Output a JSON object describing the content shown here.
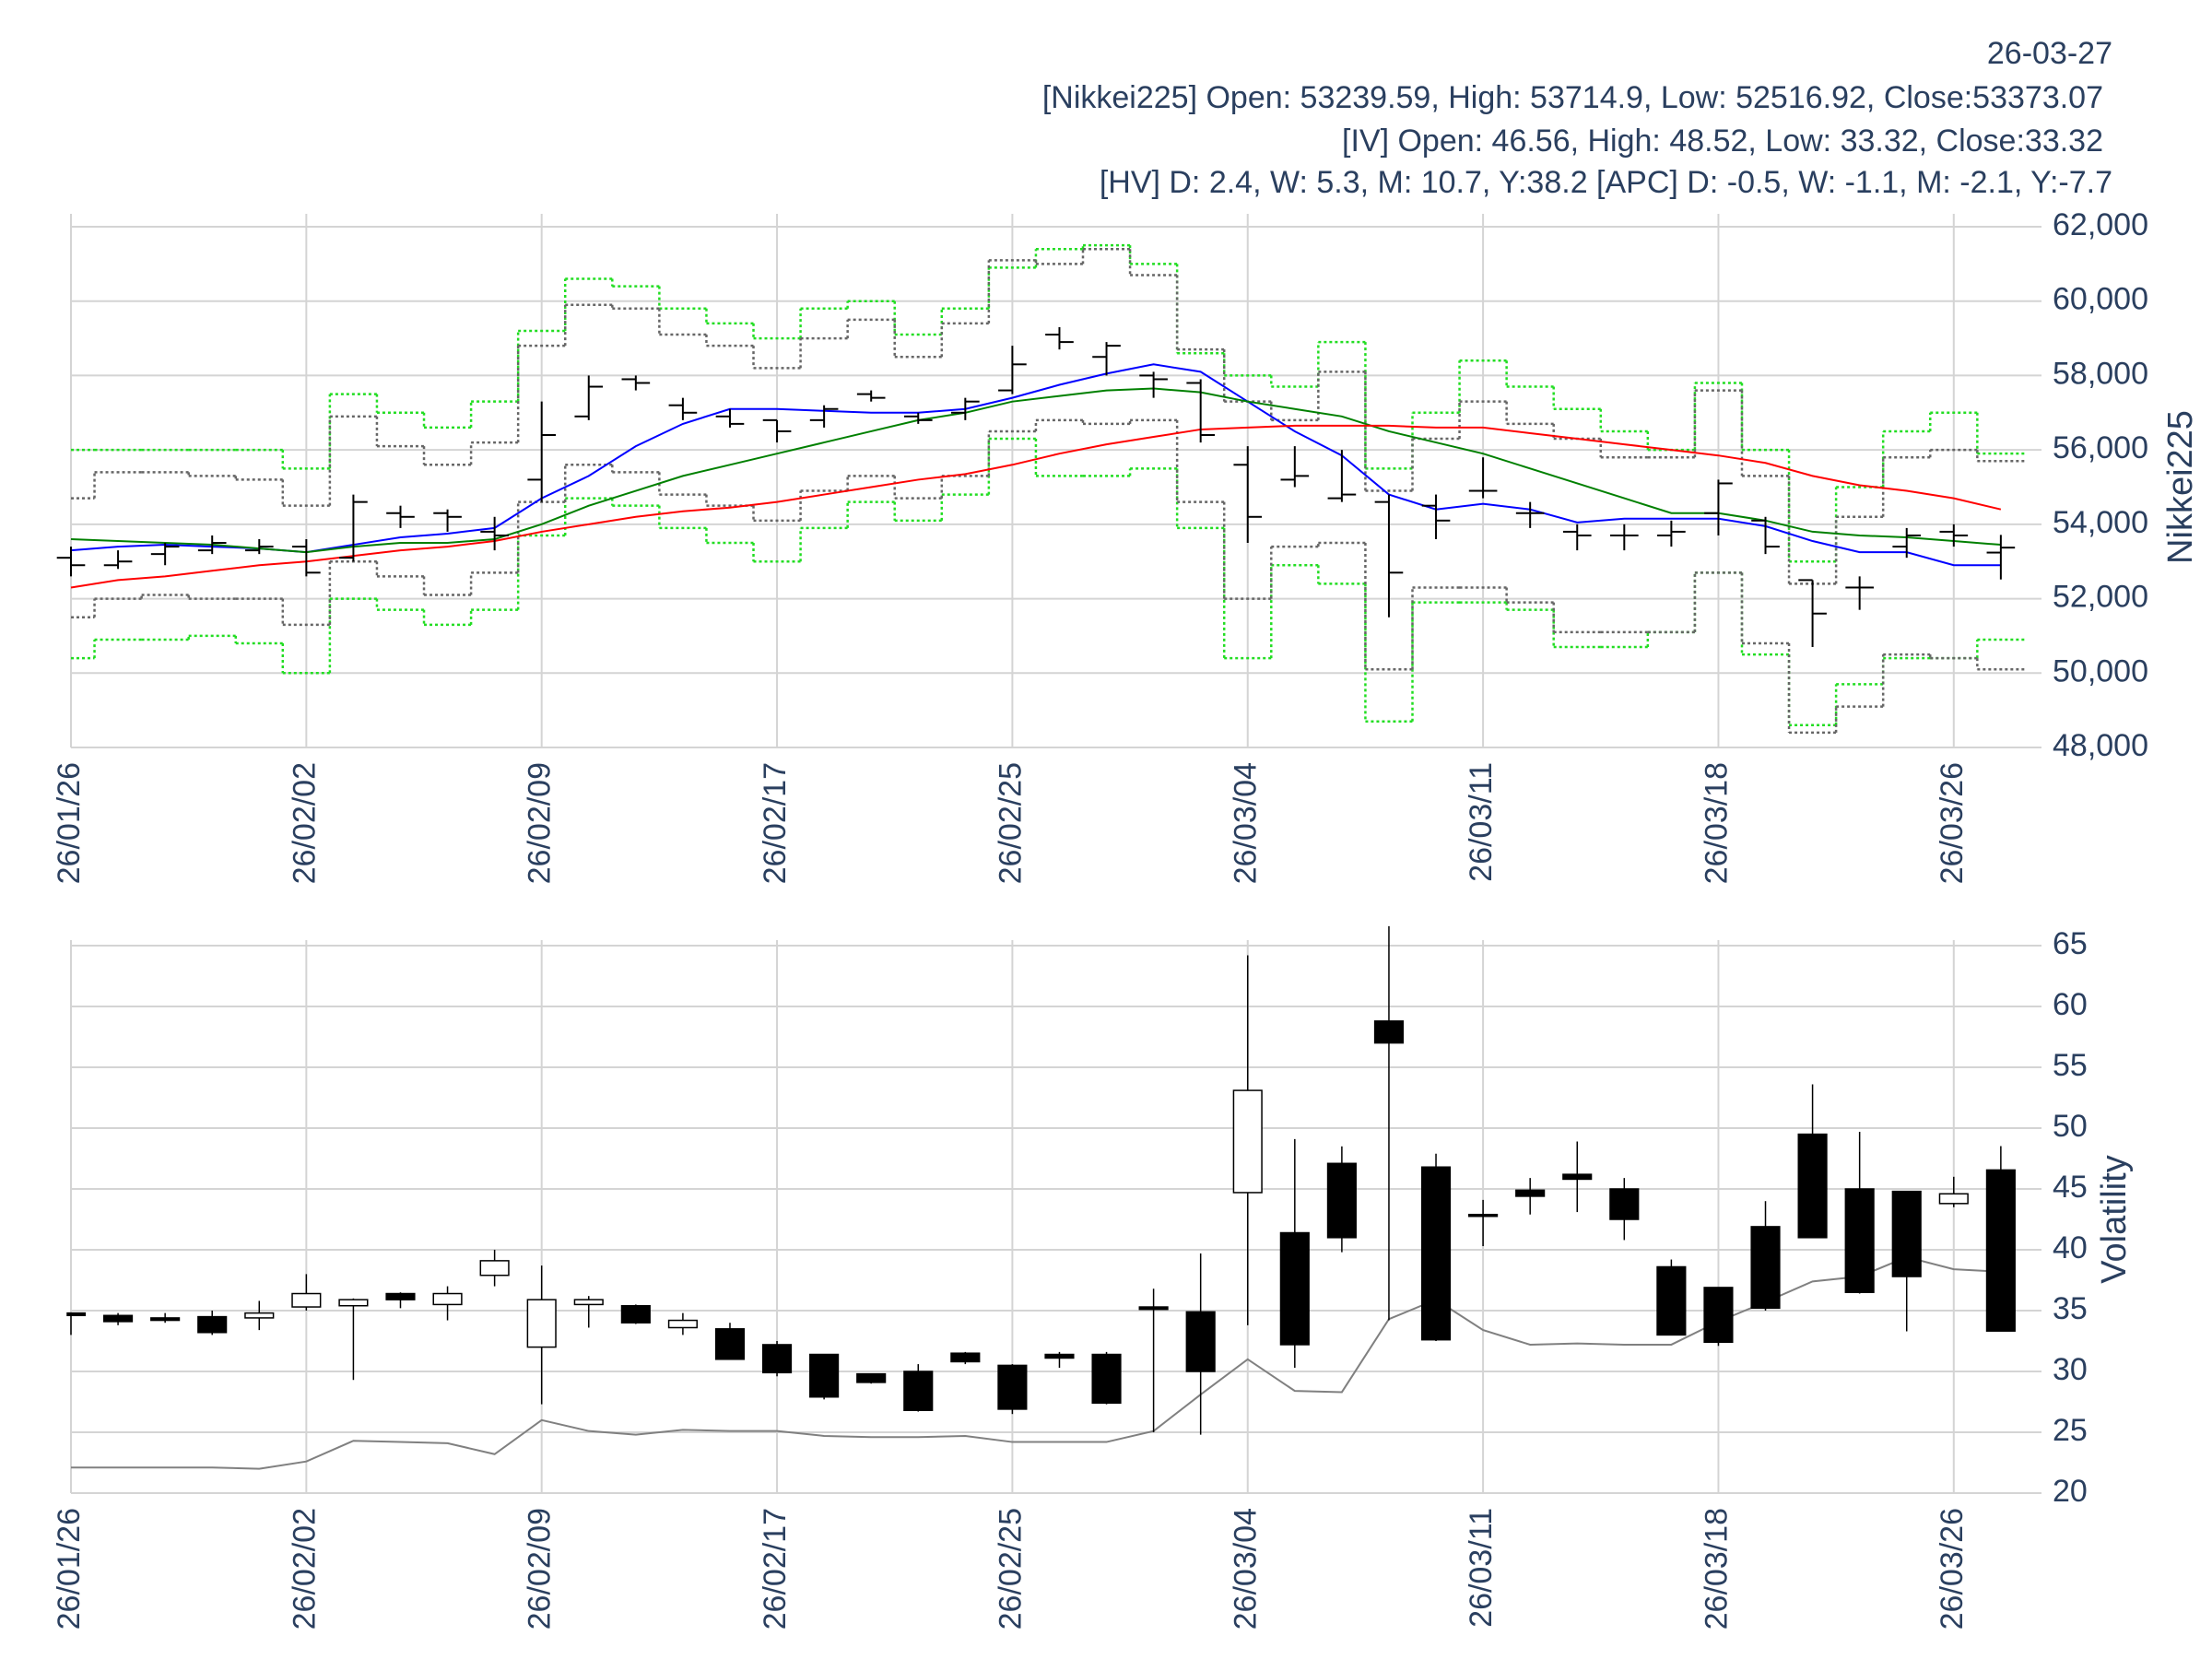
{
  "chart_data": [
    {
      "type": "ohlc",
      "annotations": [
        "26-03-27",
        "[Nikkei225] Open: 53239.59, High: 53714.9, Low: 52516.92, Close:53373.07",
        "[IV] Open: 46.56, High: 48.52, Low: 33.32, Close:33.32",
        "[HV] D: 2.4, W: 5.3, M: 10.7, Y:38.2 [APC] D: -0.5, W: -1.1, M: -2.1, Y:-7.7"
      ],
      "ylabel": "Nikkei225",
      "categories": [
        "26/01/26",
        null,
        null,
        null,
        null,
        "26/02/02",
        null,
        null,
        null,
        null,
        "26/02/09",
        null,
        null,
        null,
        null,
        "26/02/17",
        null,
        null,
        null,
        null,
        "26/02/25",
        null,
        null,
        null,
        null,
        "26/03/04",
        null,
        null,
        null,
        null,
        "26/03/11",
        null,
        null,
        null,
        null,
        "26/03/18",
        null,
        null,
        null,
        null,
        "26/03/26",
        null
      ],
      "open": [
        53100,
        52900,
        53200,
        53300,
        53300,
        53400,
        53100,
        54300,
        54300,
        53800,
        55200,
        56900,
        57900,
        57200,
        56900,
        56800,
        56800,
        57500,
        56900,
        57000,
        57600,
        59100,
        58500,
        58000,
        57800,
        55600,
        55200,
        54700,
        54600,
        54500,
        54900,
        54300,
        53800,
        53700,
        53700,
        54300,
        54100,
        52500,
        52300,
        53400,
        53800,
        53239.59
      ],
      "high": [
        53400,
        53300,
        53500,
        53700,
        53600,
        53600,
        54800,
        54500,
        54400,
        54200,
        57300,
        58000,
        58000,
        57400,
        57100,
        56800,
        57200,
        57600,
        57000,
        57400,
        58800,
        59300,
        58900,
        58100,
        57900,
        56100,
        56100,
        56000,
        54800,
        54800,
        55800,
        54600,
        54000,
        54000,
        54100,
        55200,
        54200,
        52500,
        52600,
        53900,
        54000,
        53714.9
      ],
      "low": [
        52600,
        52800,
        52900,
        53200,
        53200,
        52600,
        53000,
        53900,
        53800,
        53300,
        54600,
        56800,
        57600,
        56800,
        56600,
        56200,
        56600,
        57300,
        56700,
        56800,
        57500,
        58700,
        58000,
        57400,
        56200,
        53500,
        55000,
        54600,
        51500,
        53600,
        54700,
        53900,
        53300,
        53300,
        53400,
        53700,
        53200,
        50700,
        51700,
        53100,
        53400,
        52516.92
      ],
      "close": [
        52900,
        53000,
        53400,
        53500,
        53400,
        52700,
        54600,
        54200,
        54200,
        53700,
        56400,
        57700,
        57800,
        57000,
        56700,
        56500,
        57100,
        57400,
        56800,
        57300,
        58300,
        58900,
        58800,
        57900,
        56400,
        54200,
        55300,
        54800,
        52700,
        54100,
        54900,
        54300,
        53700,
        53700,
        53800,
        55100,
        53400,
        51600,
        52300,
        53700,
        53700,
        53373.07
      ],
      "color": "#000000",
      "ylim": [
        48000,
        62000
      ],
      "yticks": [
        {
          "value": 48000,
          "label": "48,000"
        },
        {
          "value": 50000,
          "label": "50,000"
        },
        {
          "value": 52000,
          "label": "52,000"
        },
        {
          "value": 54000,
          "label": "54,000"
        },
        {
          "value": 56000,
          "label": "56,000"
        },
        {
          "value": 58000,
          "label": "58,000"
        },
        {
          "value": 60000,
          "label": "60,000"
        },
        {
          "value": 62000,
          "label": "62,000"
        }
      ],
      "grid": true,
      "overlays": [
        {
          "color": "#0000ff",
          "values": [
            53300,
            53400,
            53450,
            53400,
            53350,
            53250,
            53450,
            53650,
            53750,
            53900,
            54700,
            55300,
            56100,
            56700,
            57100,
            57100,
            57050,
            57000,
            57000,
            57100,
            57400,
            57750,
            58050,
            58300,
            58100,
            57300,
            56500,
            55850,
            54800,
            54400,
            54550,
            54400,
            54050,
            54150,
            54150,
            54150,
            53950,
            53550,
            53250,
            53250,
            52900,
            52900
          ]
        },
        {
          "color": "#008000",
          "values": [
            53600,
            53550,
            53500,
            53450,
            53350,
            53250,
            53400,
            53500,
            53500,
            53600,
            54000,
            54500,
            54900,
            55300,
            55600,
            55900,
            56200,
            56500,
            56800,
            57000,
            57300,
            57450,
            57600,
            57650,
            57550,
            57300,
            57100,
            56900,
            56500,
            56200,
            55900,
            55500,
            55100,
            54700,
            54300,
            54300,
            54100,
            53800,
            53700,
            53650,
            53550,
            53450
          ]
        },
        {
          "color": "#ff0000",
          "values": [
            52300,
            52500,
            52600,
            52750,
            52900,
            53000,
            53150,
            53300,
            53400,
            53550,
            53800,
            54000,
            54200,
            54350,
            54450,
            54600,
            54800,
            55000,
            55200,
            55350,
            55600,
            55900,
            56150,
            56350,
            56550,
            56600,
            56650,
            56650,
            56650,
            56600,
            56600,
            56450,
            56300,
            56150,
            56000,
            55850,
            55650,
            55300,
            55050,
            54900,
            54700,
            54400
          ]
        }
      ],
      "bands": [
        {
          "color": "#22dd22",
          "values": [
            56000,
            56000,
            56000,
            56000,
            56000,
            55500,
            57500,
            57000,
            56600,
            57300,
            59200,
            60600,
            60400,
            59800,
            59400,
            59000,
            59800,
            60000,
            59100,
            59800,
            60900,
            61400,
            61500,
            61000,
            58600,
            58000,
            57700,
            58900,
            55500,
            57000,
            58400,
            57700,
            57100,
            56500,
            56000,
            57800,
            56000,
            53000,
            55000,
            56500,
            57000,
            55900
          ]
        },
        {
          "color": "#22dd22",
          "values": [
            50400,
            50900,
            50900,
            51000,
            50800,
            50000,
            52000,
            51700,
            51300,
            51700,
            53700,
            54700,
            54500,
            53900,
            53500,
            53000,
            53900,
            54600,
            54100,
            54800,
            56300,
            55300,
            55300,
            55500,
            53900,
            50400,
            52900,
            52400,
            48700,
            51900,
            51900,
            51700,
            50700,
            50700,
            51100,
            52700,
            50500,
            48600,
            49700,
            50400,
            50400,
            50900
          ]
        },
        {
          "color": "#666666",
          "values": [
            54700,
            55400,
            55400,
            55300,
            55200,
            54500,
            56900,
            56100,
            55600,
            56200,
            58800,
            59900,
            59800,
            59100,
            58800,
            58200,
            59000,
            59500,
            58500,
            59400,
            61100,
            61000,
            61400,
            60700,
            58700,
            57300,
            56800,
            58100,
            54900,
            56300,
            57300,
            56700,
            56300,
            55800,
            55800,
            57600,
            55300,
            52400,
            54200,
            55800,
            56000,
            55700
          ]
        },
        {
          "color": "#666666",
          "values": [
            51500,
            52000,
            52100,
            52000,
            52000,
            51300,
            53000,
            52600,
            52100,
            52700,
            54600,
            55600,
            55400,
            54800,
            54500,
            54100,
            54900,
            55300,
            54700,
            55300,
            56500,
            56800,
            56700,
            56800,
            54600,
            52000,
            53400,
            53500,
            50100,
            52300,
            52300,
            51900,
            51100,
            51100,
            51100,
            52700,
            50800,
            48400,
            49100,
            50500,
            50400,
            50100
          ]
        }
      ]
    },
    {
      "type": "candlestick",
      "ylabel": "Volatility",
      "categories": [
        "26/01/26",
        null,
        null,
        null,
        null,
        "26/02/02",
        null,
        null,
        null,
        null,
        "26/02/09",
        null,
        null,
        null,
        null,
        "26/02/17",
        null,
        null,
        null,
        null,
        "26/02/25",
        null,
        null,
        null,
        null,
        "26/03/04",
        null,
        null,
        null,
        null,
        "26/03/11",
        null,
        null,
        null,
        null,
        "26/03/18",
        null,
        null,
        null,
        null,
        "26/03/26",
        null
      ],
      "open": [
        34.8,
        34.6,
        34.4,
        34.5,
        34.4,
        35.3,
        35.4,
        36.4,
        35.5,
        37.9,
        32.0,
        35.5,
        35.4,
        33.6,
        33.5,
        32.2,
        31.4,
        29.8,
        30.0,
        31.5,
        30.5,
        31.4,
        31.4,
        35.3,
        34.9,
        44.7,
        41.4,
        47.1,
        58.8,
        46.8,
        42.9,
        44.9,
        46.2,
        45.0,
        38.6,
        36.9,
        41.9,
        49.5,
        45.0,
        44.8,
        43.8,
        46.56
      ],
      "high": [
        34.8,
        34.8,
        34.8,
        35.0,
        35.8,
        38.0,
        36.0,
        36.5,
        37.0,
        40.0,
        38.7,
        36.2,
        35.5,
        34.8,
        34.0,
        32.5,
        31.4,
        29.8,
        30.6,
        31.6,
        30.6,
        31.6,
        31.6,
        36.8,
        39.7,
        64.2,
        49.1,
        48.5,
        66.6,
        47.9,
        44.1,
        45.9,
        48.9,
        45.9,
        39.2,
        36.9,
        44.0,
        53.6,
        49.7,
        44.8,
        46.0,
        48.52
      ],
      "low": [
        33.0,
        33.8,
        34.0,
        33.0,
        33.4,
        35.0,
        29.3,
        35.2,
        34.2,
        37.0,
        27.3,
        33.6,
        33.9,
        33.0,
        31.0,
        29.6,
        27.7,
        29.0,
        26.7,
        30.6,
        26.5,
        30.3,
        27.3,
        25.0,
        24.8,
        33.8,
        30.3,
        39.8,
        34.2,
        32.5,
        40.3,
        42.9,
        43.1,
        40.8,
        33.0,
        32.1,
        35.0,
        41.0,
        36.4,
        33.3,
        43.5,
        33.32
      ],
      "close": [
        34.6,
        34.1,
        34.2,
        33.2,
        34.8,
        36.4,
        35.9,
        35.9,
        36.4,
        39.1,
        35.9,
        35.9,
        34.0,
        34.2,
        31.0,
        29.9,
        27.9,
        29.1,
        26.8,
        30.8,
        26.9,
        31.1,
        27.4,
        35.1,
        30.0,
        53.1,
        32.2,
        41.0,
        57.0,
        32.6,
        42.8,
        44.4,
        45.8,
        42.5,
        33.0,
        32.4,
        35.2,
        41.0,
        36.5,
        37.8,
        44.6,
        33.32
      ],
      "up_color": "#ffffff",
      "down_color": "#000000",
      "ylim": [
        20,
        65
      ],
      "yticks": [
        20,
        25,
        30,
        35,
        40,
        45,
        50,
        55,
        60,
        65
      ],
      "grid": true,
      "line": {
        "color": "#808080",
        "values": [
          22.1,
          22.1,
          22.1,
          22.1,
          22.0,
          22.6,
          24.3,
          24.2,
          24.1,
          23.2,
          26.0,
          25.1,
          24.8,
          25.2,
          25.1,
          25.1,
          24.7,
          24.6,
          24.6,
          24.7,
          24.2,
          24.2,
          24.2,
          25.1,
          28.1,
          31.0,
          28.4,
          28.3,
          34.3,
          35.9,
          33.4,
          32.2,
          32.3,
          32.2,
          32.2,
          34.1,
          35.7,
          37.4,
          37.8,
          39.4,
          38.4,
          38.2
        ]
      }
    }
  ]
}
